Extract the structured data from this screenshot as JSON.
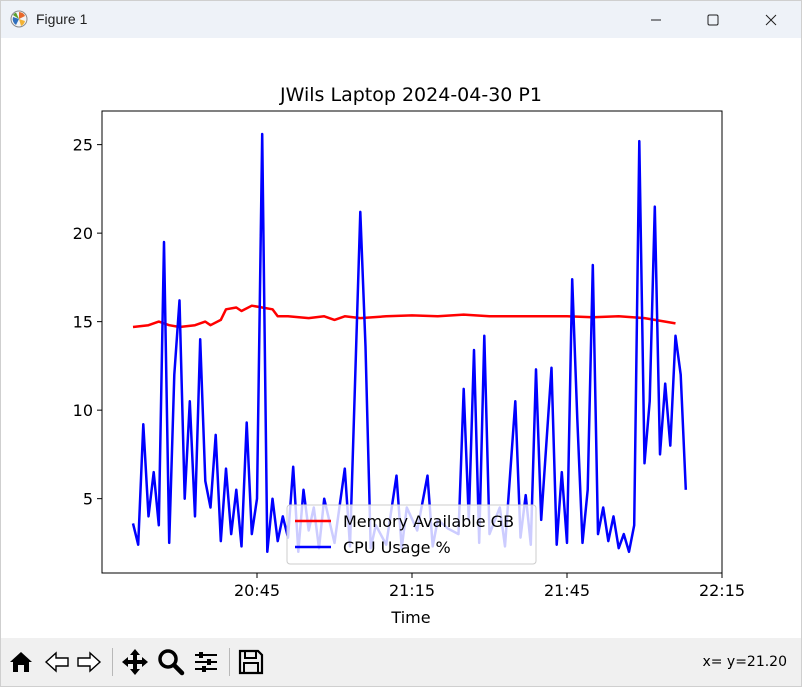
{
  "window": {
    "title": "Figure 1",
    "controls": [
      "minimize",
      "maximize",
      "close"
    ]
  },
  "toolbar": {
    "buttons": [
      "home-icon",
      "back-icon",
      "forward-icon",
      "pan-icon",
      "zoom-icon",
      "configure-subplots-icon",
      "save-icon"
    ],
    "coords_text": "x= y=21.20"
  },
  "chart_data": {
    "type": "line",
    "title": "JWils Laptop 2024-04-30 P1",
    "xlabel": "Time",
    "ylabel": "",
    "xticks": [
      "20:45",
      "21:15",
      "21:45",
      "22:15"
    ],
    "xlim": [
      "20:15",
      "22:15"
    ],
    "yticks": [
      5,
      10,
      15,
      20,
      25
    ],
    "ylim": [
      0.8,
      26.9
    ],
    "legend_position": "lower-center",
    "grid": false,
    "series": [
      {
        "name": "Memory Available GB",
        "color": "#ff0000",
        "points": [
          [
            "20:21",
            14.7
          ],
          [
            "20:24",
            14.8
          ],
          [
            "20:26",
            15.0
          ],
          [
            "20:28",
            14.8
          ],
          [
            "20:30",
            14.7
          ],
          [
            "20:33",
            14.8
          ],
          [
            "20:35",
            15.0
          ],
          [
            "20:36",
            14.8
          ],
          [
            "20:38",
            15.1
          ],
          [
            "20:39",
            15.7
          ],
          [
            "20:41",
            15.8
          ],
          [
            "20:42",
            15.6
          ],
          [
            "20:44",
            15.9
          ],
          [
            "20:46",
            15.8
          ],
          [
            "20:48",
            15.7
          ],
          [
            "20:49",
            15.3
          ],
          [
            "20:51",
            15.3
          ],
          [
            "20:55",
            15.2
          ],
          [
            "20:58",
            15.3
          ],
          [
            "21:00",
            15.1
          ],
          [
            "21:02",
            15.3
          ],
          [
            "21:05",
            15.2
          ],
          [
            "21:10",
            15.3
          ],
          [
            "21:15",
            15.35
          ],
          [
            "21:20",
            15.3
          ],
          [
            "21:25",
            15.4
          ],
          [
            "21:30",
            15.3
          ],
          [
            "21:35",
            15.3
          ],
          [
            "21:40",
            15.3
          ],
          [
            "21:45",
            15.3
          ],
          [
            "21:50",
            15.25
          ],
          [
            "21:55",
            15.3
          ],
          [
            "22:00",
            15.2
          ],
          [
            "22:02",
            15.1
          ],
          [
            "22:04",
            15.0
          ],
          [
            "22:06",
            14.9
          ]
        ]
      },
      {
        "name": "CPU Usage %",
        "color": "#0000ff",
        "points": [
          [
            "20:21",
            3.6
          ],
          [
            "20:22",
            2.4
          ],
          [
            "20:23",
            9.2
          ],
          [
            "20:24",
            4.0
          ],
          [
            "20:25",
            6.5
          ],
          [
            "20:26",
            3.5
          ],
          [
            "20:27",
            19.5
          ],
          [
            "20:28",
            2.5
          ],
          [
            "20:29",
            12.0
          ],
          [
            "20:30",
            16.2
          ],
          [
            "20:31",
            5.0
          ],
          [
            "20:32",
            10.5
          ],
          [
            "20:33",
            4.0
          ],
          [
            "20:34",
            14.0
          ],
          [
            "20:35",
            6.0
          ],
          [
            "20:36",
            4.5
          ],
          [
            "20:37",
            8.6
          ],
          [
            "20:38",
            2.6
          ],
          [
            "20:39",
            6.7
          ],
          [
            "20:40",
            3.0
          ],
          [
            "20:41",
            5.5
          ],
          [
            "20:42",
            2.3
          ],
          [
            "20:43",
            9.3
          ],
          [
            "20:44",
            3.0
          ],
          [
            "20:45",
            5.0
          ],
          [
            "20:46",
            25.6
          ],
          [
            "20:47",
            2.0
          ],
          [
            "20:48",
            5.0
          ],
          [
            "20:49",
            2.6
          ],
          [
            "20:50",
            4.0
          ],
          [
            "20:51",
            2.8
          ],
          [
            "20:52",
            6.8
          ],
          [
            "20:53",
            2.0
          ],
          [
            "20:54",
            5.5
          ],
          [
            "20:55",
            3.2
          ],
          [
            "20:56",
            4.5
          ],
          [
            "20:57",
            2.2
          ],
          [
            "20:58",
            5.0
          ],
          [
            "21:00",
            2.5
          ],
          [
            "21:02",
            6.7
          ],
          [
            "21:03",
            2.3
          ],
          [
            "21:05",
            21.2
          ],
          [
            "21:06",
            13.6
          ],
          [
            "21:07",
            2.2
          ],
          [
            "21:08",
            3.5
          ],
          [
            "21:10",
            2.4
          ],
          [
            "21:12",
            6.3
          ],
          [
            "21:13",
            2.2
          ],
          [
            "21:14",
            4.5
          ],
          [
            "21:16",
            3.2
          ],
          [
            "21:18",
            6.3
          ],
          [
            "21:19",
            2.3
          ],
          [
            "21:20",
            3.8
          ],
          [
            "21:22",
            3.3
          ],
          [
            "21:24",
            3.0
          ],
          [
            "21:25",
            11.2
          ],
          [
            "21:26",
            3.8
          ],
          [
            "21:27",
            13.4
          ],
          [
            "21:28",
            2.5
          ],
          [
            "21:29",
            14.2
          ],
          [
            "21:30",
            3.0
          ],
          [
            "21:32",
            4.5
          ],
          [
            "21:33",
            2.3
          ],
          [
            "21:35",
            10.5
          ],
          [
            "21:36",
            2.8
          ],
          [
            "21:37",
            5.2
          ],
          [
            "21:38",
            2.4
          ],
          [
            "21:39",
            12.3
          ],
          [
            "21:40",
            3.8
          ],
          [
            "21:42",
            12.4
          ],
          [
            "21:43",
            2.4
          ],
          [
            "21:44",
            6.5
          ],
          [
            "21:45",
            2.5
          ],
          [
            "21:46",
            17.4
          ],
          [
            "21:47",
            9.5
          ],
          [
            "21:48",
            2.5
          ],
          [
            "21:49",
            5.5
          ],
          [
            "21:50",
            18.2
          ],
          [
            "21:51",
            3.0
          ],
          [
            "21:52",
            4.5
          ],
          [
            "21:53",
            2.6
          ],
          [
            "21:54",
            4.0
          ],
          [
            "21:55",
            2.2
          ],
          [
            "21:56",
            3.0
          ],
          [
            "21:57",
            2.0
          ],
          [
            "21:58",
            3.5
          ],
          [
            "21:59",
            25.2
          ],
          [
            "22:00",
            7.0
          ],
          [
            "22:01",
            10.5
          ],
          [
            "22:02",
            21.5
          ],
          [
            "22:03",
            7.5
          ],
          [
            "22:04",
            11.5
          ],
          [
            "22:05",
            8.0
          ],
          [
            "22:06",
            14.2
          ],
          [
            "22:07",
            12.0
          ],
          [
            "22:08",
            5.5
          ]
        ]
      }
    ]
  }
}
